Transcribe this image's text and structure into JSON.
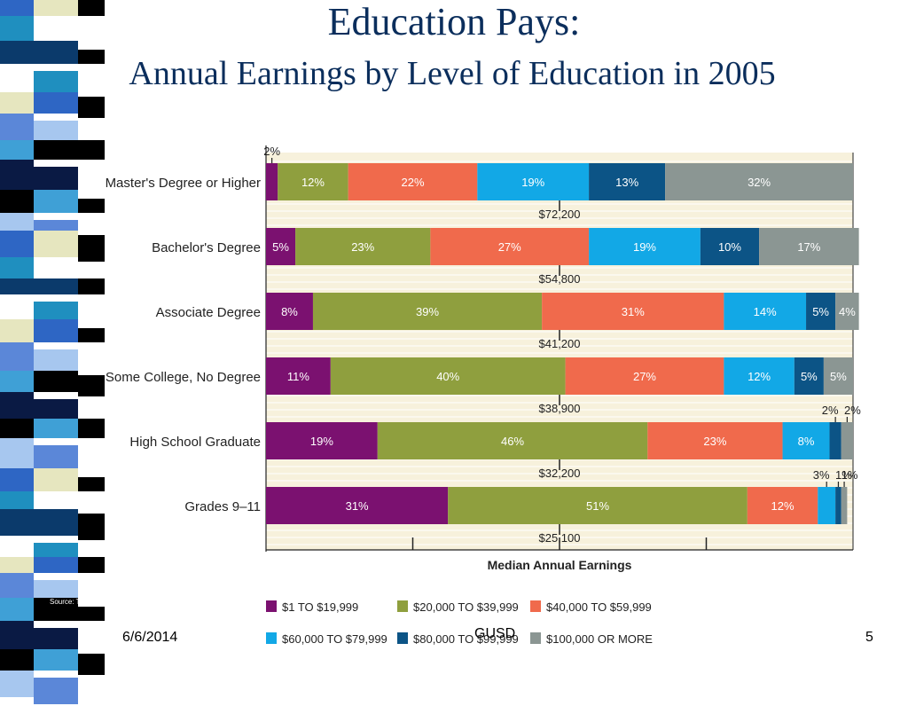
{
  "slide": {
    "title": "Education Pays:",
    "subtitle": "Annual Earnings by Level of Education in 2005",
    "source": "Source: The",
    "footer_date": "6/6/2014",
    "footer_center": "GUSD",
    "page_number": "5"
  },
  "colors": {
    "title": "#0b2e5c",
    "purple": "#7b1170",
    "green": "#8f9f3e",
    "orange": "#f06a4c",
    "cyan": "#12a8e6",
    "navy": "#0c5486",
    "gray": "#8b9693",
    "band": "#f7f1dc"
  },
  "chart_data": {
    "type": "bar",
    "orientation": "horizontal",
    "stacked": true,
    "xlabel": "Median Annual Earnings",
    "categories": [
      "Master's Degree or Higher",
      "Bachelor's Degree",
      "Associate Degree",
      "Some College, No Degree",
      "High School Graduate",
      "Grades 9–11"
    ],
    "medians": [
      "$72,200",
      "$54,800",
      "$41,200",
      "$38,900",
      "$32,200",
      "$25,100"
    ],
    "series": [
      {
        "name": "$1 TO $19,999",
        "color": "#7b1170",
        "values": [
          2,
          5,
          8,
          11,
          19,
          31
        ]
      },
      {
        "name": "$20,000 TO $39,999",
        "color": "#8f9f3e",
        "values": [
          12,
          23,
          39,
          40,
          46,
          51
        ]
      },
      {
        "name": "$40,000 TO $59,999",
        "color": "#f06a4c",
        "values": [
          22,
          27,
          31,
          27,
          23,
          12
        ]
      },
      {
        "name": "$60,000 TO $79,999",
        "color": "#12a8e6",
        "values": [
          19,
          19,
          14,
          12,
          8,
          3
        ]
      },
      {
        "name": "$80,000 TO $99,999",
        "color": "#0c5486",
        "values": [
          13,
          10,
          5,
          5,
          2,
          1
        ]
      },
      {
        "name": "$100,000 OR MORE",
        "color": "#8b9693",
        "values": [
          32,
          17,
          4,
          5,
          2,
          1
        ]
      }
    ],
    "legend_position": "bottom",
    "xlim": [
      0,
      100
    ]
  }
}
